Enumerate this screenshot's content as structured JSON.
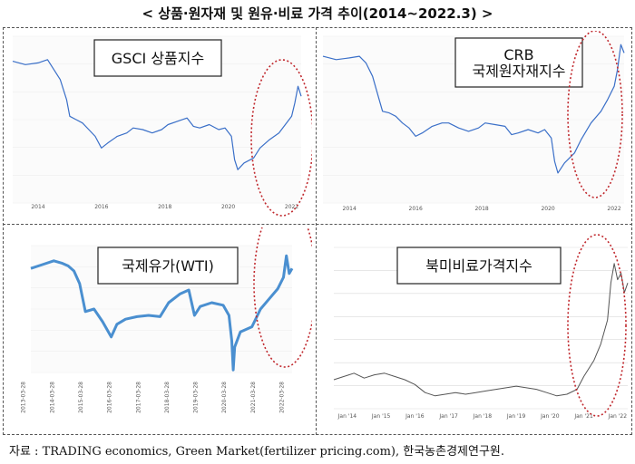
{
  "page_title": "< 상품·원자재 및 원유·비료 가격 추이(2014~2022.3) >",
  "source_note": "자료 : TRADING economics, Green Market(fertilizer pricing.com), 한국농촌경제연구원.",
  "colors": {
    "line_blue": "#3a6fc8",
    "line_wti": "#4a8fd0",
    "line_gray": "#555555",
    "highlight": "#c0282d"
  },
  "chart_data": [
    {
      "type": "line",
      "title_lines": [
        "GSCI 상품지수"
      ],
      "x_tick_labels": [
        "2014",
        "2016",
        "2018",
        "2020",
        "2022"
      ],
      "x_years": [
        2014,
        2016,
        2018,
        2020,
        2022
      ],
      "x_range": [
        2013.2,
        2022.3
      ],
      "y_range": [
        0,
        100
      ],
      "highlight_ellipse": "2020–2022",
      "series": [
        {
          "color": "#3a6fc8",
          "x": [
            2013.2,
            2013.6,
            2014.0,
            2014.3,
            2014.5,
            2014.7,
            2014.9,
            2015.0,
            2015.2,
            2015.4,
            2015.6,
            2015.8,
            2016.0,
            2016.2,
            2016.5,
            2016.8,
            2017.0,
            2017.3,
            2017.6,
            2017.9,
            2018.1,
            2018.4,
            2018.7,
            2018.9,
            2019.1,
            2019.4,
            2019.7,
            2019.9,
            2020.1,
            2020.2,
            2020.3,
            2020.5,
            2020.8,
            2021.0,
            2021.3,
            2021.6,
            2021.8,
            2022.0,
            2022.1,
            2022.2,
            2022.3
          ],
          "y": [
            85,
            83,
            84,
            86,
            80,
            74,
            62,
            52,
            50,
            48,
            44,
            40,
            33,
            36,
            40,
            42,
            45,
            44,
            42,
            44,
            47,
            49,
            51,
            46,
            45,
            47,
            44,
            45,
            40,
            26,
            20,
            24,
            27,
            33,
            38,
            42,
            47,
            52,
            60,
            70,
            64
          ]
        }
      ]
    },
    {
      "type": "line",
      "title_lines": [
        "CRB",
        "국제원자재지수"
      ],
      "x_tick_labels": [
        "2014",
        "2016",
        "2018",
        "2020",
        "2022"
      ],
      "x_years": [
        2014,
        2016,
        2018,
        2020,
        2022
      ],
      "x_range": [
        2013.2,
        2022.3
      ],
      "y_range": [
        0,
        100
      ],
      "highlight_ellipse": "2020–2022",
      "series": [
        {
          "color": "#3a6fc8",
          "x": [
            2013.2,
            2013.6,
            2014.0,
            2014.3,
            2014.5,
            2014.7,
            2014.9,
            2015.0,
            2015.2,
            2015.4,
            2015.6,
            2015.8,
            2016.0,
            2016.2,
            2016.5,
            2016.8,
            2017.0,
            2017.3,
            2017.6,
            2017.9,
            2018.1,
            2018.4,
            2018.7,
            2018.9,
            2019.1,
            2019.4,
            2019.7,
            2019.9,
            2020.1,
            2020.2,
            2020.3,
            2020.5,
            2020.8,
            2021.0,
            2021.3,
            2021.6,
            2021.8,
            2022.0,
            2022.1,
            2022.2,
            2022.3
          ],
          "y": [
            88,
            86,
            87,
            88,
            84,
            76,
            62,
            55,
            54,
            52,
            48,
            45,
            40,
            42,
            46,
            48,
            48,
            45,
            43,
            45,
            48,
            47,
            46,
            41,
            42,
            44,
            42,
            44,
            39,
            25,
            18,
            24,
            30,
            38,
            48,
            55,
            62,
            70,
            80,
            95,
            90
          ]
        }
      ]
    },
    {
      "type": "line",
      "title_lines": [
        "국제유가(WTI)"
      ],
      "x_tick_labels": [
        "2013-03-28",
        "2014-03-28",
        "2015-03-28",
        "2016-03-28",
        "2017-03-28",
        "2018-03-28",
        "2019-03-28",
        "2020-03-28",
        "2021-03-28",
        "2022-03-28"
      ],
      "x_years": [
        2013,
        2014,
        2015,
        2016,
        2017,
        2018,
        2019,
        2020,
        2021,
        2022
      ],
      "x_range": [
        2013.2,
        2022.3
      ],
      "y_range": [
        0,
        100
      ],
      "highlight_ellipse": "2020–2022",
      "series": [
        {
          "color": "#4a8fd0",
          "x": [
            2013.2,
            2013.6,
            2014.0,
            2014.3,
            2014.5,
            2014.7,
            2014.9,
            2015.1,
            2015.4,
            2015.7,
            2016.0,
            2016.2,
            2016.5,
            2016.9,
            2017.3,
            2017.7,
            2018.0,
            2018.4,
            2018.7,
            2018.9,
            2019.1,
            2019.5,
            2019.9,
            2020.1,
            2020.2,
            2020.25,
            2020.3,
            2020.5,
            2020.9,
            2021.2,
            2021.5,
            2021.8,
            2022.0,
            2022.1,
            2022.2,
            2022.3
          ],
          "y": [
            82,
            85,
            88,
            86,
            84,
            80,
            70,
            48,
            50,
            40,
            28,
            38,
            42,
            44,
            45,
            44,
            55,
            62,
            65,
            45,
            52,
            55,
            53,
            45,
            25,
            2,
            20,
            32,
            36,
            50,
            58,
            66,
            75,
            92,
            78,
            82
          ]
        }
      ]
    },
    {
      "type": "line",
      "title_lines": [
        "북미비료가격지수"
      ],
      "x_tick_labels": [
        "Jan '14",
        "Jan '15",
        "Jan '16",
        "Jan '17",
        "Jan '18",
        "Jan '19",
        "Jan '20",
        "Jan '21",
        "Jan '22"
      ],
      "x_years": [
        2014,
        2015,
        2016,
        2017,
        2018,
        2019,
        2020,
        2021,
        2022
      ],
      "x_range": [
        2013.6,
        2022.3
      ],
      "y_range": [
        0,
        100
      ],
      "highlight_ellipse": "2020–2022",
      "series": [
        {
          "color": "#555555",
          "x": [
            2013.6,
            2013.9,
            2014.2,
            2014.5,
            2014.8,
            2015.1,
            2015.4,
            2015.7,
            2016.0,
            2016.3,
            2016.6,
            2016.9,
            2017.2,
            2017.5,
            2017.8,
            2018.1,
            2018.4,
            2018.7,
            2019.0,
            2019.3,
            2019.6,
            2019.9,
            2020.2,
            2020.5,
            2020.8,
            2021.0,
            2021.3,
            2021.5,
            2021.7,
            2021.8,
            2021.9,
            2022.0,
            2022.1,
            2022.2,
            2022.3
          ],
          "y": [
            18,
            20,
            22,
            19,
            21,
            22,
            20,
            18,
            15,
            10,
            8,
            9,
            10,
            9,
            10,
            11,
            12,
            13,
            14,
            13,
            12,
            10,
            8,
            9,
            12,
            20,
            30,
            40,
            55,
            78,
            90,
            80,
            84,
            72,
            78
          ]
        }
      ]
    }
  ]
}
